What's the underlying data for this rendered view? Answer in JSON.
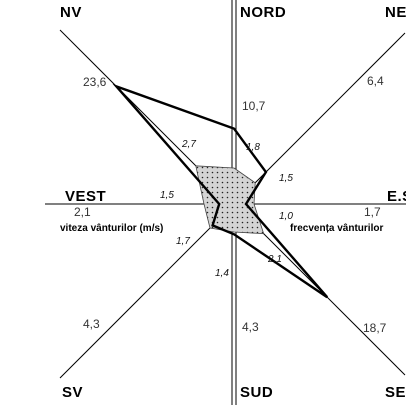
{
  "chart_data": {
    "type": "radar",
    "directions": [
      "NORD",
      "NE",
      "E.S",
      "SE",
      "SUD",
      "SV",
      "VEST",
      "NV"
    ],
    "series": [
      {
        "name": "frecvența vânturilor",
        "values": [
          10.7,
          6.4,
          1.7,
          18.7,
          4.3,
          4.3,
          2.1,
          23.6
        ],
        "value_labels": [
          "10,7",
          "6,4",
          "1,7",
          "18,7",
          "4,3",
          "4,3",
          "2,1",
          "23,6"
        ]
      },
      {
        "name": "viteza vânturilor (m/s)",
        "values": [
          1.8,
          1.5,
          1.0,
          2.1,
          1.4,
          1.7,
          1.5,
          2.7
        ],
        "value_labels": [
          "1,8",
          "1,5",
          "1,0",
          "2,1",
          "1,4",
          "1,7",
          "1,5",
          "2,7"
        ]
      }
    ],
    "labels": {
      "speed": "viteza vânturilor (m/s)",
      "frequency": "frecvența vânturilor"
    },
    "colors": {
      "frequency_line": "#000000",
      "speed_fill": "#c8c8c8",
      "axes": "#000000"
    }
  }
}
